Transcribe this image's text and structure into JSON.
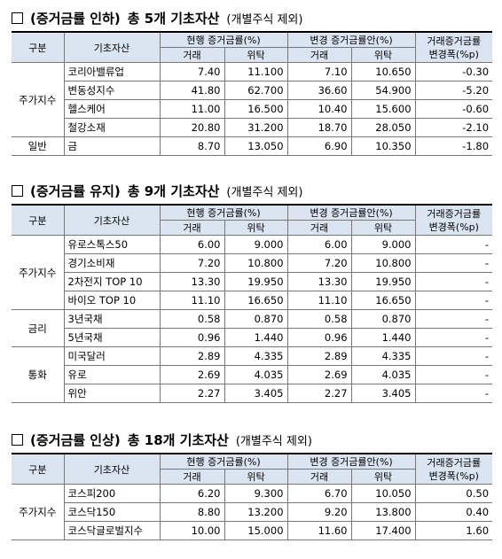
{
  "table_header": {
    "group": "구분",
    "asset": "기초자산",
    "current": "현행 증거금률(%)",
    "proposed": "변경 증거금률안(%)",
    "change": [
      "거래증거금률",
      "변경폭(%p)"
    ],
    "trade": "거래",
    "consign": "위탁"
  },
  "sections": [
    {
      "heading": {
        "label": "(증거금률 인하)",
        "count": "총 5개 기초자산",
        "note": "(개별주식 제외)"
      },
      "groups": [
        {
          "name": "주가지수",
          "rows": [
            [
              "코리아밸류업",
              "7.40",
              "11.100",
              "7.10",
              "10.650",
              "-0.30"
            ],
            [
              "변동성지수",
              "41.80",
              "62.700",
              "36.60",
              "54.900",
              "-5.20"
            ],
            [
              "헬스케어",
              "11.00",
              "16.500",
              "10.40",
              "15.600",
              "-0.60"
            ],
            [
              "철강소재",
              "20.80",
              "31.200",
              "18.70",
              "28.050",
              "-2.10"
            ]
          ]
        },
        {
          "name": "일반",
          "rows": [
            [
              "금",
              "8.70",
              "13.050",
              "6.90",
              "10.350",
              "-1.80"
            ]
          ]
        }
      ]
    },
    {
      "heading": {
        "label": "(증거금률 유지)",
        "count": "총 9개 기초자산",
        "note": "(개별주식 제외)"
      },
      "groups": [
        {
          "name": "주가지수",
          "rows": [
            [
              "유로스톡스50",
              "6.00",
              "9.000",
              "6.00",
              "9.000",
              "-"
            ],
            [
              "경기소비재",
              "7.20",
              "10.800",
              "7.20",
              "10.800",
              "-"
            ],
            [
              "2차전지 TOP 10",
              "13.30",
              "19.950",
              "13.30",
              "19.950",
              "-"
            ],
            [
              "바이오 TOP 10",
              "11.10",
              "16.650",
              "11.10",
              "16.650",
              "-"
            ]
          ]
        },
        {
          "name": "금리",
          "rows": [
            [
              "3년국채",
              "0.58",
              "0.870",
              "0.58",
              "0.870",
              "-"
            ],
            [
              "5년국채",
              "0.96",
              "1.440",
              "0.96",
              "1.440",
              "-"
            ]
          ]
        },
        {
          "name": "통화",
          "rows": [
            [
              "미국달러",
              "2.89",
              "4.335",
              "2.89",
              "4.335",
              "-"
            ],
            [
              "유로",
              "2.69",
              "4.035",
              "2.69",
              "4.035",
              "-"
            ],
            [
              "위안",
              "2.27",
              "3.405",
              "2.27",
              "3.405",
              "-"
            ]
          ]
        }
      ]
    },
    {
      "heading": {
        "label": "(증거금률 인상)",
        "count": "총 18개 기초자산",
        "note": "(개별주식 제외)"
      },
      "groups": [
        {
          "name": "주가지수",
          "rows": [
            [
              "코스피200",
              "6.20",
              "9.300",
              "6.70",
              "10.050",
              "0.50"
            ],
            [
              "코스닥150",
              "8.80",
              "13.200",
              "9.20",
              "13.800",
              "0.40"
            ],
            [
              "코스닥글로벌지수",
              "10.00",
              "15.000",
              "11.60",
              "17.400",
              "1.60"
            ]
          ]
        }
      ]
    }
  ]
}
